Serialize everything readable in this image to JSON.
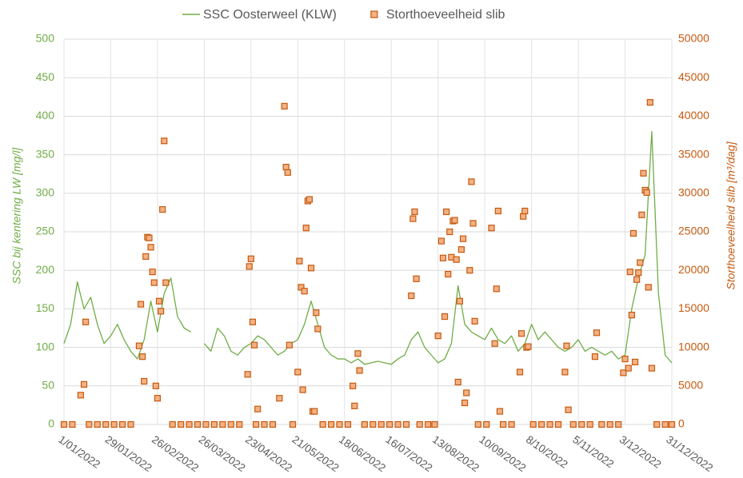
{
  "chart_data": {
    "type": "line",
    "y_label": "SSC bij kentering LW [mg/l]",
    "y2_label": "Storthoeveelheid slib [m³/dag]",
    "xlim": [
      "2022-01-01",
      "2022-12-31"
    ],
    "xticks": [
      {
        "value": "2022-01-01",
        "label": "1/01/2022"
      },
      {
        "value": "2022-01-29",
        "label": "29/01/2022"
      },
      {
        "value": "2022-02-26",
        "label": "26/02/2022"
      },
      {
        "value": "2022-03-26",
        "label": "26/03/2022"
      },
      {
        "value": "2022-04-23",
        "label": "23/04/2022"
      },
      {
        "value": "2022-05-21",
        "label": "21/05/2022"
      },
      {
        "value": "2022-06-18",
        "label": "18/06/2022"
      },
      {
        "value": "2022-07-16",
        "label": "16/07/2022"
      },
      {
        "value": "2022-08-13",
        "label": "13/08/2022"
      },
      {
        "value": "2022-09-10",
        "label": "10/09/2022"
      },
      {
        "value": "2022-10-08",
        "label": "8/10/2022"
      },
      {
        "value": "2022-11-05",
        "label": "5/11/2022"
      },
      {
        "value": "2022-12-03",
        "label": "3/12/2022"
      },
      {
        "value": "2022-12-31",
        "label": "31/12/2022"
      }
    ],
    "ylim": [
      0,
      500
    ],
    "yticks": [
      0,
      50,
      100,
      150,
      200,
      250,
      300,
      350,
      400,
      450,
      500
    ],
    "y2lim": [
      0,
      50000
    ],
    "y2ticks": [
      0,
      5000,
      10000,
      15000,
      20000,
      25000,
      30000,
      35000,
      40000,
      45000,
      50000
    ],
    "grid": true,
    "legend": "top",
    "series": [
      {
        "name": "SSC Oosterweel (KLW)",
        "type": "line",
        "color": "#70ad47",
        "x": [
          "2022-01-01",
          "2022-01-05",
          "2022-01-09",
          "2022-01-13",
          "2022-01-17",
          "2022-01-21",
          "2022-01-25",
          "2022-01-29",
          "2022-02-02",
          "2022-02-06",
          "2022-02-10",
          "2022-02-14",
          "2022-02-18",
          "2022-02-22",
          "2022-02-26",
          "2022-03-02",
          "2022-03-06",
          "2022-03-10",
          "2022-03-14",
          "2022-03-18",
          "2022-03-22",
          "2022-03-26",
          "2022-03-30",
          "2022-04-03",
          "2022-04-07",
          "2022-04-11",
          "2022-04-15",
          "2022-04-19",
          "2022-04-23",
          "2022-04-27",
          "2022-05-01",
          "2022-05-05",
          "2022-05-09",
          "2022-05-13",
          "2022-05-17",
          "2022-05-21",
          "2022-05-25",
          "2022-05-29",
          "2022-06-02",
          "2022-06-06",
          "2022-06-10",
          "2022-06-14",
          "2022-06-18",
          "2022-06-22",
          "2022-06-26",
          "2022-06-30",
          "2022-07-04",
          "2022-07-08",
          "2022-07-12",
          "2022-07-16",
          "2022-07-20",
          "2022-07-24",
          "2022-07-28",
          "2022-08-01",
          "2022-08-05",
          "2022-08-09",
          "2022-08-13",
          "2022-08-17",
          "2022-08-21",
          "2022-08-25",
          "2022-08-29",
          "2022-09-02",
          "2022-09-06",
          "2022-09-10",
          "2022-09-14",
          "2022-09-18",
          "2022-09-22",
          "2022-09-26",
          "2022-09-30",
          "2022-10-04",
          "2022-10-08",
          "2022-10-12",
          "2022-10-16",
          "2022-10-20",
          "2022-10-24",
          "2022-10-28",
          "2022-11-01",
          "2022-11-05",
          "2022-11-09",
          "2022-11-13",
          "2022-11-17",
          "2022-11-21",
          "2022-11-25",
          "2022-11-29",
          "2022-12-03",
          "2022-12-07",
          "2022-12-11",
          "2022-12-15",
          "2022-12-19",
          "2022-12-23",
          "2022-12-27",
          "2022-12-31"
        ],
        "values": [
          105,
          130,
          185,
          150,
          165,
          130,
          105,
          115,
          130,
          110,
          95,
          85,
          110,
          160,
          120,
          170,
          190,
          140,
          125,
          120,
          null,
          105,
          95,
          125,
          115,
          95,
          90,
          100,
          105,
          115,
          110,
          100,
          90,
          95,
          105,
          110,
          130,
          160,
          130,
          100,
          90,
          85,
          85,
          80,
          85,
          78,
          80,
          82,
          80,
          78,
          85,
          90,
          110,
          120,
          100,
          90,
          80,
          85,
          105,
          180,
          130,
          120,
          115,
          110,
          125,
          110,
          105,
          115,
          95,
          105,
          130,
          110,
          120,
          110,
          100,
          95,
          100,
          110,
          95,
          100,
          95,
          90,
          95,
          85,
          90,
          150,
          190,
          220,
          380,
          170,
          90,
          80
        ]
      },
      {
        "name": "Storthoeveelheid slib",
        "type": "scatter",
        "axis": "y2",
        "color": "#f4b183",
        "edgecolor": "#c55a11",
        "x": [
          "2022-01-01",
          "2022-01-06",
          "2022-01-11",
          "2022-01-13",
          "2022-01-14",
          "2022-01-16",
          "2022-01-21",
          "2022-01-26",
          "2022-01-31",
          "2022-02-05",
          "2022-02-10",
          "2022-02-15",
          "2022-02-16",
          "2022-02-17",
          "2022-02-18",
          "2022-02-19",
          "2022-02-20",
          "2022-02-21",
          "2022-02-22",
          "2022-02-23",
          "2022-02-24",
          "2022-02-25",
          "2022-02-26",
          "2022-02-27",
          "2022-02-28",
          "2022-03-01",
          "2022-03-02",
          "2022-03-03",
          "2022-03-07",
          "2022-03-12",
          "2022-03-17",
          "2022-03-22",
          "2022-03-27",
          "2022-04-01",
          "2022-04-06",
          "2022-04-11",
          "2022-04-16",
          "2022-04-21",
          "2022-04-22",
          "2022-04-23",
          "2022-04-24",
          "2022-04-25",
          "2022-04-26",
          "2022-04-27",
          "2022-05-01",
          "2022-05-06",
          "2022-05-10",
          "2022-05-13",
          "2022-05-14",
          "2022-05-15",
          "2022-05-16",
          "2022-05-18",
          "2022-05-21",
          "2022-05-22",
          "2022-05-23",
          "2022-05-24",
          "2022-05-25",
          "2022-05-26",
          "2022-05-27",
          "2022-05-28",
          "2022-05-29",
          "2022-05-30",
          "2022-05-31",
          "2022-06-01",
          "2022-06-02",
          "2022-06-05",
          "2022-06-10",
          "2022-06-15",
          "2022-06-20",
          "2022-06-23",
          "2022-06-24",
          "2022-06-26",
          "2022-06-27",
          "2022-06-30",
          "2022-07-05",
          "2022-07-10",
          "2022-07-15",
          "2022-07-20",
          "2022-07-25",
          "2022-07-28",
          "2022-07-29",
          "2022-07-30",
          "2022-07-31",
          "2022-08-02",
          "2022-08-07",
          "2022-08-11",
          "2022-08-13",
          "2022-08-15",
          "2022-08-16",
          "2022-08-17",
          "2022-08-18",
          "2022-08-19",
          "2022-08-20",
          "2022-08-21",
          "2022-08-22",
          "2022-08-23",
          "2022-08-24",
          "2022-08-25",
          "2022-08-26",
          "2022-08-27",
          "2022-08-28",
          "2022-08-29",
          "2022-08-30",
          "2022-09-01",
          "2022-09-02",
          "2022-09-03",
          "2022-09-04",
          "2022-09-06",
          "2022-09-11",
          "2022-09-14",
          "2022-09-16",
          "2022-09-17",
          "2022-09-18",
          "2022-09-19",
          "2022-09-21",
          "2022-09-26",
          "2022-10-01",
          "2022-10-02",
          "2022-10-03",
          "2022-10-04",
          "2022-10-05",
          "2022-10-06",
          "2022-10-09",
          "2022-10-14",
          "2022-10-19",
          "2022-10-24",
          "2022-10-28",
          "2022-10-29",
          "2022-10-30",
          "2022-11-02",
          "2022-11-07",
          "2022-11-12",
          "2022-11-15",
          "2022-11-16",
          "2022-11-19",
          "2022-11-24",
          "2022-11-29",
          "2022-12-02",
          "2022-12-03",
          "2022-12-05",
          "2022-12-06",
          "2022-12-07",
          "2022-12-08",
          "2022-12-09",
          "2022-12-10",
          "2022-12-11",
          "2022-12-12",
          "2022-12-13",
          "2022-12-14",
          "2022-12-15",
          "2022-12-16",
          "2022-12-17",
          "2022-12-18",
          "2022-12-19",
          "2022-12-22",
          "2022-12-27",
          "2022-12-31"
        ],
        "values": [
          0,
          0,
          3800,
          5200,
          13300,
          0,
          0,
          0,
          0,
          0,
          0,
          10200,
          15600,
          8800,
          5600,
          21800,
          24300,
          24200,
          23000,
          19800,
          18400,
          5000,
          3400,
          16000,
          14700,
          27900,
          36800,
          18400,
          0,
          0,
          0,
          0,
          0,
          0,
          0,
          0,
          0,
          6500,
          20500,
          21500,
          13300,
          10300,
          0,
          2000,
          0,
          0,
          3400,
          41300,
          33400,
          32700,
          10300,
          0,
          6800,
          21200,
          17800,
          4500,
          17300,
          25500,
          29000,
          29200,
          20300,
          1700,
          1700,
          14500,
          12400,
          0,
          0,
          0,
          0,
          5000,
          2400,
          9200,
          7000,
          0,
          0,
          0,
          0,
          0,
          0,
          16700,
          26700,
          27600,
          18900,
          0,
          0,
          0,
          11500,
          23800,
          21600,
          14000,
          27600,
          19500,
          25000,
          21700,
          26400,
          26500,
          21400,
          5500,
          16000,
          22700,
          24100,
          2800,
          4100,
          20000,
          31500,
          26100,
          13400,
          0,
          0,
          25500,
          10500,
          17600,
          27700,
          1700,
          0,
          0,
          6800,
          11800,
          27000,
          27700,
          10000,
          10100,
          0,
          0,
          0,
          0,
          6800,
          10200,
          1900,
          0,
          0,
          0,
          8800,
          11900,
          0,
          0,
          0,
          6700,
          8500,
          7300,
          19800,
          14200,
          24800,
          8100,
          18800,
          19700,
          21000,
          27200,
          32600,
          30400,
          30100,
          17800,
          41800,
          7300,
          0,
          0,
          0
        ]
      }
    ]
  }
}
